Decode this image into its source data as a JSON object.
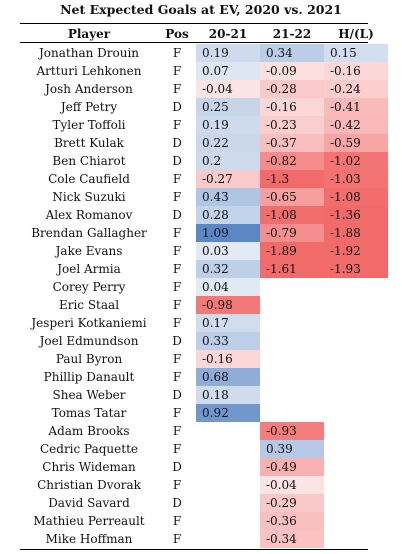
{
  "table": {
    "title": "Net Expected Goals at EV, 2020 vs. 2021",
    "headers": {
      "player": "Player",
      "pos": "Pos",
      "c2021": "20-21",
      "c2122": "21-22",
      "diff": "H/(L)"
    },
    "rows": [
      {
        "player": "Jonathan Drouin",
        "pos": "F",
        "v2021": "0.19",
        "v2122": "0.34",
        "diff": "0.15"
      },
      {
        "player": "Artturi Lehkonen",
        "pos": "F",
        "v2021": "0.07",
        "v2122": "-0.09",
        "diff": "-0.16"
      },
      {
        "player": "Josh Anderson",
        "pos": "F",
        "v2021": "-0.04",
        "v2122": "-0.28",
        "diff": "-0.24"
      },
      {
        "player": "Jeff Petry",
        "pos": "D",
        "v2021": "0.25",
        "v2122": "-0.16",
        "diff": "-0.41"
      },
      {
        "player": "Tyler Toffoli",
        "pos": "F",
        "v2021": "0.19",
        "v2122": "-0.23",
        "diff": "-0.42"
      },
      {
        "player": "Brett Kulak",
        "pos": "D",
        "v2021": "0.22",
        "v2122": "-0.37",
        "diff": "-0.59"
      },
      {
        "player": "Ben Chiarot",
        "pos": "D",
        "v2021": "0.2",
        "v2122": "-0.82",
        "diff": "-1.02"
      },
      {
        "player": "Cole Caufield",
        "pos": "F",
        "v2021": "-0.27",
        "v2122": "-1.3",
        "diff": "-1.03"
      },
      {
        "player": "Nick Suzuki",
        "pos": "F",
        "v2021": "0.43",
        "v2122": "-0.65",
        "diff": "-1.08"
      },
      {
        "player": "Alex Romanov",
        "pos": "D",
        "v2021": "0.28",
        "v2122": "-1.08",
        "diff": "-1.36"
      },
      {
        "player": "Brendan Gallagher",
        "pos": "F",
        "v2021": "1.09",
        "v2122": "-0.79",
        "diff": "-1.88"
      },
      {
        "player": "Jake Evans",
        "pos": "F",
        "v2021": "0.03",
        "v2122": "-1.89",
        "diff": "-1.92"
      },
      {
        "player": "Joel Armia",
        "pos": "F",
        "v2021": "0.32",
        "v2122": "-1.61",
        "diff": "-1.93"
      },
      {
        "player": "Corey Perry",
        "pos": "F",
        "v2021": "0.04",
        "v2122": "",
        "diff": ""
      },
      {
        "player": "Eric Staal",
        "pos": "F",
        "v2021": "-0.98",
        "v2122": "",
        "diff": ""
      },
      {
        "player": "Jesperi Kotkaniemi",
        "pos": "F",
        "v2021": "0.17",
        "v2122": "",
        "diff": ""
      },
      {
        "player": "Joel Edmundson",
        "pos": "D",
        "v2021": "0.33",
        "v2122": "",
        "diff": ""
      },
      {
        "player": "Paul Byron",
        "pos": "F",
        "v2021": "-0.16",
        "v2122": "",
        "diff": ""
      },
      {
        "player": "Phillip Danault",
        "pos": "F",
        "v2021": "0.68",
        "v2122": "",
        "diff": ""
      },
      {
        "player": "Shea Weber",
        "pos": "D",
        "v2021": "0.18",
        "v2122": "",
        "diff": ""
      },
      {
        "player": "Tomas Tatar",
        "pos": "F",
        "v2021": "0.92",
        "v2122": "",
        "diff": ""
      },
      {
        "player": "Adam Brooks",
        "pos": "F",
        "v2021": "",
        "v2122": "-0.93",
        "diff": ""
      },
      {
        "player": "Cedric Paquette",
        "pos": "F",
        "v2021": "",
        "v2122": "0.39",
        "diff": ""
      },
      {
        "player": "Chris Wideman",
        "pos": "D",
        "v2021": "",
        "v2122": "-0.49",
        "diff": ""
      },
      {
        "player": "Christian Dvorak",
        "pos": "F",
        "v2021": "",
        "v2122": "-0.04",
        "diff": ""
      },
      {
        "player": "David Savard",
        "pos": "D",
        "v2021": "",
        "v2122": "-0.29",
        "diff": ""
      },
      {
        "player": "Mathieu Perreault",
        "pos": "F",
        "v2021": "",
        "v2122": "-0.36",
        "diff": ""
      },
      {
        "player": "Mike Hoffman",
        "pos": "F",
        "v2021": "",
        "v2122": "-0.34",
        "diff": ""
      }
    ]
  },
  "colors": {
    "positive": "#5b86c5",
    "negative": "#f26b6b",
    "neutral": "#ffffff"
  }
}
